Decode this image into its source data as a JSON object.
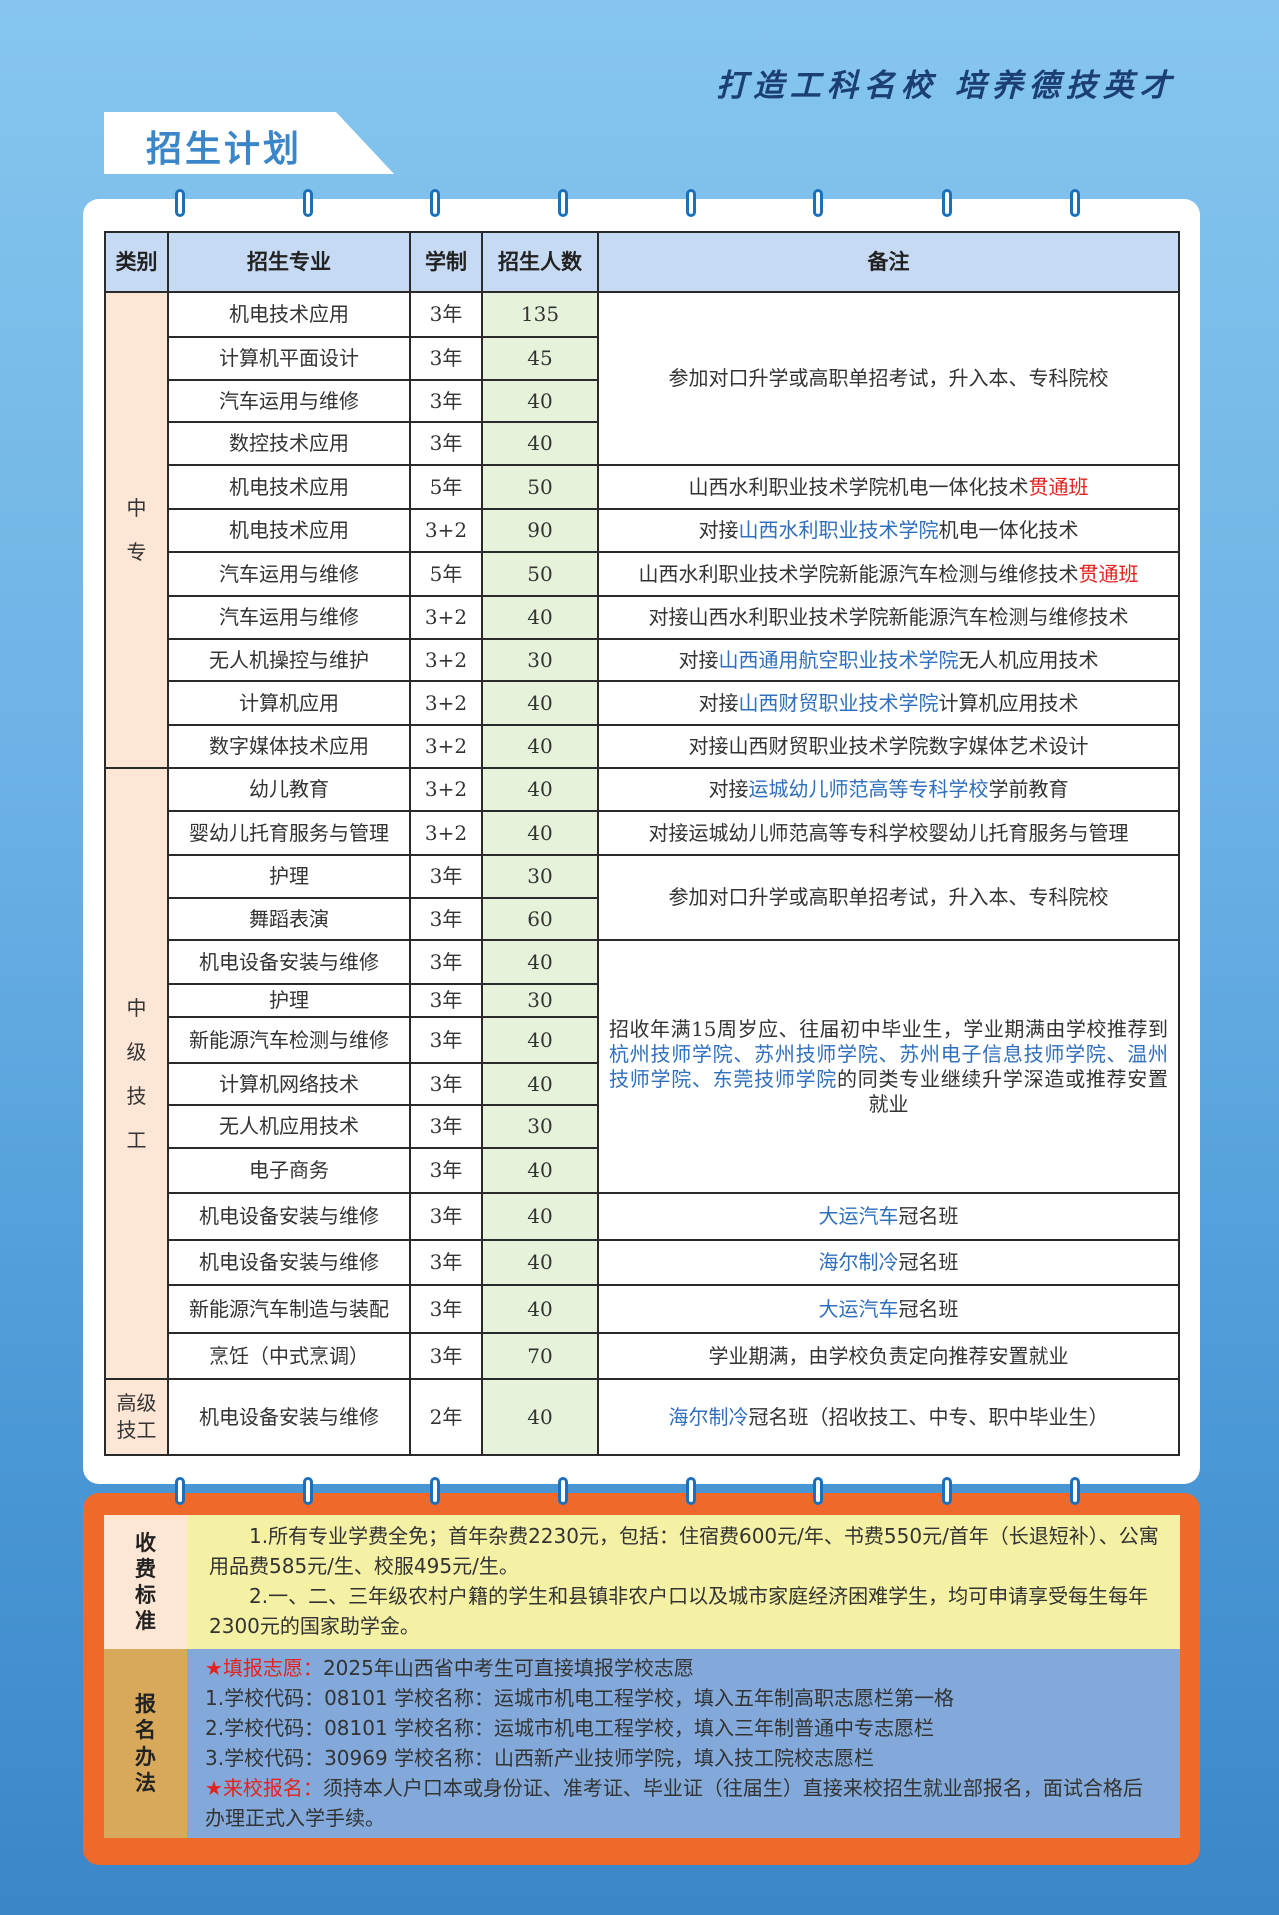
{
  "header": {
    "slogan": "打造工科名校  培养德技英才",
    "title": "招生计划"
  },
  "table": {
    "headers": [
      "类别",
      "招生专业",
      "学制",
      "招生人数",
      "备注"
    ],
    "categories": [
      "中专",
      "中级技工",
      "高级技工"
    ],
    "rows": [
      {
        "major": "机电技术应用",
        "duration": "3年",
        "count": "135"
      },
      {
        "major": "计算机平面设计",
        "duration": "3年",
        "count": "45"
      },
      {
        "major": "汽车运用与维修",
        "duration": "3年",
        "count": "40"
      },
      {
        "major": "数控技术应用",
        "duration": "3年",
        "count": "40"
      },
      {
        "major": "机电技术应用",
        "duration": "5年",
        "count": "50"
      },
      {
        "major": "机电技术应用",
        "duration": "3+2",
        "count": "90"
      },
      {
        "major": "汽车运用与维修",
        "duration": "5年",
        "count": "50"
      },
      {
        "major": "汽车运用与维修",
        "duration": "3+2",
        "count": "40"
      },
      {
        "major": "无人机操控与维护",
        "duration": "3+2",
        "count": "30"
      },
      {
        "major": "计算机应用",
        "duration": "3+2",
        "count": "40"
      },
      {
        "major": "数字媒体技术应用",
        "duration": "3+2",
        "count": "40"
      },
      {
        "major": "幼儿教育",
        "duration": "3+2",
        "count": "40"
      },
      {
        "major": "婴幼儿托育服务与管理",
        "duration": "3+2",
        "count": "40"
      },
      {
        "major": "护理",
        "duration": "3年",
        "count": "30"
      },
      {
        "major": "舞蹈表演",
        "duration": "3年",
        "count": "60"
      },
      {
        "major": "机电设备安装与维修",
        "duration": "3年",
        "count": "40"
      },
      {
        "major": "护理",
        "duration": "3年",
        "count": "30"
      },
      {
        "major": "新能源汽车检测与维修",
        "duration": "3年",
        "count": "40"
      },
      {
        "major": "计算机网络技术",
        "duration": "3年",
        "count": "40"
      },
      {
        "major": "无人机应用技术",
        "duration": "3年",
        "count": "30"
      },
      {
        "major": "电子商务",
        "duration": "3年",
        "count": "40"
      },
      {
        "major": "机电设备安装与维修",
        "duration": "3年",
        "count": "40"
      },
      {
        "major": "机电设备安装与维修",
        "duration": "3年",
        "count": "40"
      },
      {
        "major": "新能源汽车制造与装配",
        "duration": "3年",
        "count": "40"
      },
      {
        "major": "烹饪（中式烹调）",
        "duration": "3年",
        "count": "70"
      },
      {
        "major": "机电设备安装与维修",
        "duration": "2年",
        "count": "40"
      }
    ],
    "remarks": [
      [
        {
          "t": "参加对口升学或高职单招考试，升入本、专科院校",
          "c": ""
        }
      ],
      [
        {
          "t": "山西水利职业技术学院机电一体化技术",
          "c": ""
        },
        {
          "t": "贯通班",
          "c": "red"
        }
      ],
      [
        {
          "t": "对接",
          "c": ""
        },
        {
          "t": "山西水利职业技术学院",
          "c": "blue"
        },
        {
          "t": "机电一体化技术",
          "c": ""
        }
      ],
      [
        {
          "t": "山西水利职业技术学院新能源汽车检测与维修技术",
          "c": ""
        },
        {
          "t": "贯通班",
          "c": "red"
        }
      ],
      [
        {
          "t": "对接山西水利职业技术学院新能源汽车检测与维修技术",
          "c": ""
        }
      ],
      [
        {
          "t": "对接",
          "c": ""
        },
        {
          "t": "山西通用航空职业技术学院",
          "c": "blue"
        },
        {
          "t": "无人机应用技术",
          "c": ""
        }
      ],
      [
        {
          "t": "对接",
          "c": ""
        },
        {
          "t": "山西财贸职业技术学院",
          "c": "blue"
        },
        {
          "t": "计算机应用技术",
          "c": ""
        }
      ],
      [
        {
          "t": "对接山西财贸职业技术学院数字媒体艺术设计",
          "c": ""
        }
      ],
      [
        {
          "t": "对接",
          "c": ""
        },
        {
          "t": "运城幼儿师范高等专科学校",
          "c": "blue"
        },
        {
          "t": "学前教育",
          "c": ""
        }
      ],
      [
        {
          "t": "对接运城幼儿师范高等专科学校婴幼儿托育服务与管理",
          "c": ""
        }
      ],
      [
        {
          "t": "参加对口升学或高职单招考试，升入本、专科院校",
          "c": ""
        }
      ],
      [
        {
          "t": "招收年满15周岁应、往届初中毕业生，学业期满由学校推荐到",
          "c": ""
        },
        {
          "t": "杭州技师学院、苏州技师学院、苏州电子信息技师学院、温州技师学院、东莞技师学院",
          "c": "blue"
        },
        {
          "t": "的同类专业继续升学深造或推荐安置就业",
          "c": ""
        }
      ],
      [
        {
          "t": "大运汽车",
          "c": "blue"
        },
        {
          "t": "冠名班",
          "c": ""
        }
      ],
      [
        {
          "t": "海尔制冷",
          "c": "blue"
        },
        {
          "t": "冠名班",
          "c": ""
        }
      ],
      [
        {
          "t": "大运汽车",
          "c": "blue"
        },
        {
          "t": "冠名班",
          "c": ""
        }
      ],
      [
        {
          "t": "学业期满，由学校负责定向推荐安置就业",
          "c": ""
        }
      ],
      [
        {
          "t": "海尔制冷",
          "c": "blue"
        },
        {
          "t": "冠名班（招收技工、中专、职中毕业生）",
          "c": ""
        }
      ]
    ]
  },
  "fees": {
    "label": "收费标准",
    "lines": [
      "1.所有专业学费全免；首年杂费2230元，包括：住宿费600元/年、书费550元/首年（长退短补）、公寓用品费585元/生、校服495元/生。",
      "2.一、二、三年级农村户籍的学生和县镇非农户口以及城市家庭经济困难学生，均可申请享受每生每年2300元的国家助学金。"
    ]
  },
  "registration": {
    "label": "报名办法",
    "star": "★",
    "apply_title": "填报志愿：",
    "apply_text": "2025年山西省中考生可直接填报学校志愿",
    "codes": [
      "1.学校代码：08101 学校名称：运城市机电工程学校，填入五年制高职志愿栏第一格",
      "2.学校代码：08101 学校名称：运城市机电工程学校，填入三年制普通中专志愿栏",
      "3.学校代码：30969 学校名称：山西新产业技师学院，填入技工院校志愿栏"
    ],
    "visit_title": "来校报名：",
    "visit_text": "须持本人户口本或身份证、准考证、毕业证（往届生）直接来校招生就业部报名，面试合格后办理正式入学手续。"
  },
  "colors": {
    "accent_blue": "#2f6fbd",
    "accent_red": "#e3231f",
    "orange": "#ef6a2a"
  }
}
